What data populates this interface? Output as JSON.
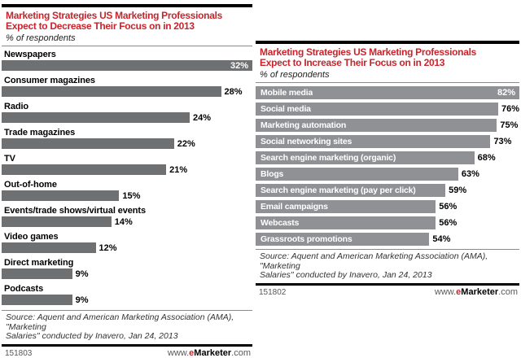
{
  "brand": {
    "accent_red": "#C9242B",
    "website_parts": {
      "www": "www.",
      "e": "e",
      "marketer": "Marketer",
      "com": ".com"
    }
  },
  "chart_data": [
    {
      "type": "bar",
      "orientation": "horizontal",
      "title_lines": [
        "Marketing Strategies US Marketing Professionals",
        "Expect to Decrease Their Focus on in 2013"
      ],
      "subtitle": "% of respondents",
      "categories": [
        "Newspapers",
        "Consumer magazines",
        "Radio",
        "Trade magazines",
        "TV",
        "Out-of-home",
        "Events/trade shows/virtual events",
        "Video games",
        "Direct marketing",
        "Podcasts"
      ],
      "values": [
        32,
        28,
        24,
        22,
        21,
        15,
        14,
        12,
        9,
        9
      ],
      "value_suffix": "%",
      "axis_max": 32,
      "label_style": "above",
      "bar_color": "#6F7072",
      "grid": false,
      "legend": "none",
      "source_lines": [
        "Source: Aquent and American Marketing Association (AMA), \"Marketing",
        "Salaries\" conducted by Inavero, Jan 24, 2013"
      ],
      "chart_id": "151803",
      "website": "www.eMarketer.com"
    },
    {
      "type": "bar",
      "orientation": "horizontal",
      "title_lines": [
        "Marketing Strategies US Marketing Professionals",
        "Expect to Increase Their Focus on in 2013"
      ],
      "subtitle": "% of respondents",
      "categories": [
        "Mobile media",
        "Social media",
        "Marketing automation",
        "Social networking sites",
        "Search engine marketing (organic)",
        "Blogs",
        "Search engine marketing (pay per click)",
        "Email campaigns",
        "Webcasts",
        "Grassroots promotions"
      ],
      "values": [
        82,
        76,
        75,
        73,
        68,
        63,
        59,
        56,
        56,
        54
      ],
      "value_suffix": "%",
      "axis_max": 82,
      "label_style": "inside",
      "bar_color": "#8F9194",
      "grid": false,
      "legend": "none",
      "source_lines": [
        "Source: Aquent and American Marketing Association (AMA), \"Marketing",
        "Salaries\" conducted by Inavero, Jan 24, 2013"
      ],
      "chart_id": "151802",
      "website": "www.eMarketer.com"
    }
  ]
}
